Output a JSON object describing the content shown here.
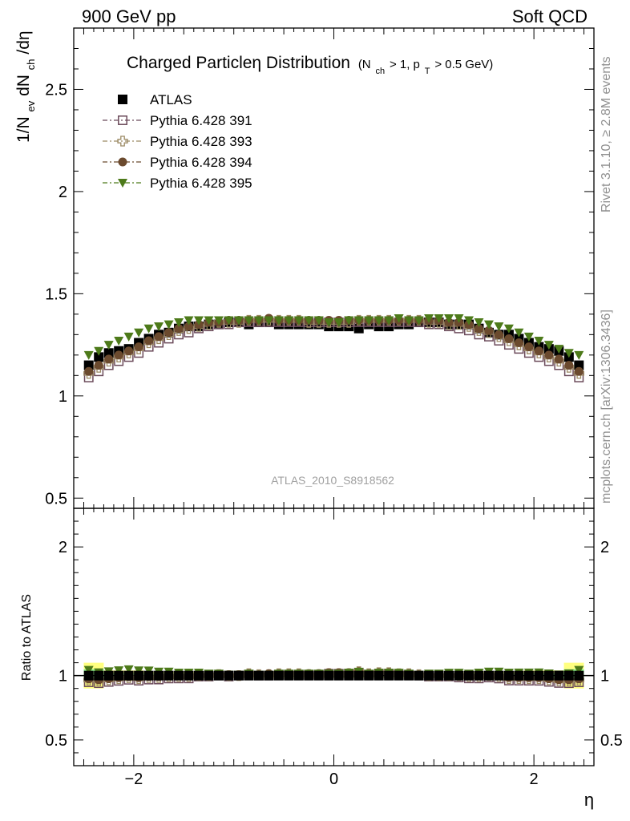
{
  "header": {
    "left": "900 GeV pp",
    "right": "Soft QCD"
  },
  "side_text": {
    "rivet": "Rivet 3.1.10, ≥ 2.8M events",
    "mcplots": "mcplots.cern.ch [arXiv:1306.3436]"
  },
  "analysis_id": "ATLAS_2010_S8918562",
  "colors": {
    "atlas": "#000000",
    "p391": "#6b4a5a",
    "p393": "#9c8a64",
    "p394": "#6b4a2e",
    "p395": "#4d7a1a",
    "band_yellow": "#ffff80",
    "band_green": "#8ff08f"
  },
  "chart_data": {
    "type": "scatter",
    "title": "Charged Particleη Distribution",
    "title_sub": "(N_ch > 1, p_T > 0.5 GeV)",
    "title_parts": {
      "main": "Charged Particleη Distribution",
      "open": "(N",
      "sub1": "ch",
      "mid": " > 1, p",
      "sub2": "T",
      "close": " > 0.5 GeV)"
    },
    "xlabel": "η",
    "ylabel": "1/N_ev dN_ch/dη",
    "ylabel_parts": {
      "a": "1/N",
      "s1": "ev",
      "b": " dN",
      "s2": "ch",
      "c": "/dη"
    },
    "ratio_ylabel": "Ratio to ATLAS",
    "xlim": [
      -2.6,
      2.6
    ],
    "ylim": [
      0.45,
      2.8
    ],
    "ratio_ylim": [
      0.3,
      2.3
    ],
    "main_yticks": [
      "0.5",
      "1",
      "1.5",
      "2",
      "2.5"
    ],
    "main_ytick_values": [
      0.5,
      1,
      1.5,
      2,
      2.5
    ],
    "ratio_yticks": [
      "0.5",
      "1",
      "2"
    ],
    "ratio_ytick_values": [
      0.5,
      1,
      2
    ],
    "xticks": [
      "−2",
      "0",
      "2"
    ],
    "xtick_values": [
      -2,
      0,
      2
    ],
    "legend_position": "top-left",
    "x": [
      -2.45,
      -2.35,
      -2.25,
      -2.15,
      -2.05,
      -1.95,
      -1.85,
      -1.75,
      -1.65,
      -1.55,
      -1.45,
      -1.35,
      -1.25,
      -1.15,
      -1.05,
      -0.95,
      -0.85,
      -0.75,
      -0.65,
      -0.55,
      -0.45,
      -0.35,
      -0.25,
      -0.15,
      -0.05,
      0.05,
      0.15,
      0.25,
      0.35,
      0.45,
      0.55,
      0.65,
      0.75,
      0.85,
      0.95,
      1.05,
      1.15,
      1.25,
      1.35,
      1.45,
      1.55,
      1.65,
      1.75,
      1.85,
      1.95,
      2.05,
      2.15,
      2.25,
      2.35,
      2.45
    ],
    "series": [
      {
        "name": "ATLAS",
        "marker": "square-filled",
        "values": [
          1.15,
          1.19,
          1.21,
          1.22,
          1.23,
          1.26,
          1.28,
          1.3,
          1.31,
          1.33,
          1.34,
          1.34,
          1.35,
          1.35,
          1.36,
          1.36,
          1.35,
          1.36,
          1.36,
          1.35,
          1.35,
          1.35,
          1.35,
          1.35,
          1.34,
          1.34,
          1.34,
          1.33,
          1.35,
          1.34,
          1.34,
          1.35,
          1.35,
          1.36,
          1.36,
          1.36,
          1.35,
          1.35,
          1.35,
          1.33,
          1.31,
          1.3,
          1.3,
          1.28,
          1.26,
          1.24,
          1.23,
          1.22,
          1.19,
          1.15
        ]
      },
      {
        "name": "Pythia 6.428 391",
        "marker": "square-open",
        "values": [
          1.09,
          1.12,
          1.15,
          1.17,
          1.19,
          1.21,
          1.24,
          1.26,
          1.28,
          1.3,
          1.31,
          1.33,
          1.34,
          1.35,
          1.35,
          1.36,
          1.36,
          1.36,
          1.36,
          1.36,
          1.36,
          1.36,
          1.36,
          1.36,
          1.36,
          1.36,
          1.36,
          1.36,
          1.36,
          1.36,
          1.36,
          1.36,
          1.36,
          1.36,
          1.35,
          1.35,
          1.34,
          1.33,
          1.32,
          1.3,
          1.29,
          1.27,
          1.25,
          1.23,
          1.21,
          1.19,
          1.17,
          1.15,
          1.12,
          1.09
        ]
      },
      {
        "name": "Pythia 6.428 393",
        "marker": "cross-open",
        "values": [
          1.11,
          1.14,
          1.17,
          1.19,
          1.21,
          1.23,
          1.26,
          1.28,
          1.3,
          1.32,
          1.33,
          1.34,
          1.35,
          1.36,
          1.36,
          1.36,
          1.37,
          1.37,
          1.37,
          1.37,
          1.37,
          1.37,
          1.36,
          1.36,
          1.36,
          1.36,
          1.36,
          1.37,
          1.37,
          1.37,
          1.37,
          1.37,
          1.37,
          1.37,
          1.36,
          1.36,
          1.35,
          1.35,
          1.34,
          1.32,
          1.31,
          1.29,
          1.27,
          1.25,
          1.23,
          1.21,
          1.19,
          1.17,
          1.14,
          1.11
        ]
      },
      {
        "name": "Pythia 6.428 394",
        "marker": "circle-filled",
        "values": [
          1.12,
          1.15,
          1.18,
          1.2,
          1.22,
          1.24,
          1.27,
          1.29,
          1.31,
          1.33,
          1.34,
          1.35,
          1.36,
          1.36,
          1.37,
          1.37,
          1.37,
          1.37,
          1.38,
          1.37,
          1.37,
          1.37,
          1.37,
          1.37,
          1.37,
          1.37,
          1.37,
          1.37,
          1.37,
          1.37,
          1.37,
          1.37,
          1.37,
          1.37,
          1.37,
          1.37,
          1.36,
          1.36,
          1.35,
          1.33,
          1.32,
          1.3,
          1.28,
          1.26,
          1.24,
          1.22,
          1.2,
          1.18,
          1.15,
          1.12
        ]
      },
      {
        "name": "Pythia 6.428 395",
        "marker": "triangle-down-filled",
        "values": [
          1.2,
          1.22,
          1.25,
          1.27,
          1.29,
          1.31,
          1.33,
          1.34,
          1.35,
          1.36,
          1.37,
          1.37,
          1.37,
          1.37,
          1.37,
          1.37,
          1.37,
          1.37,
          1.37,
          1.37,
          1.37,
          1.37,
          1.37,
          1.37,
          1.36,
          1.36,
          1.37,
          1.37,
          1.37,
          1.37,
          1.37,
          1.38,
          1.37,
          1.37,
          1.38,
          1.38,
          1.38,
          1.38,
          1.37,
          1.36,
          1.35,
          1.34,
          1.33,
          1.31,
          1.29,
          1.27,
          1.25,
          1.23,
          1.21,
          1.2
        ]
      }
    ]
  }
}
